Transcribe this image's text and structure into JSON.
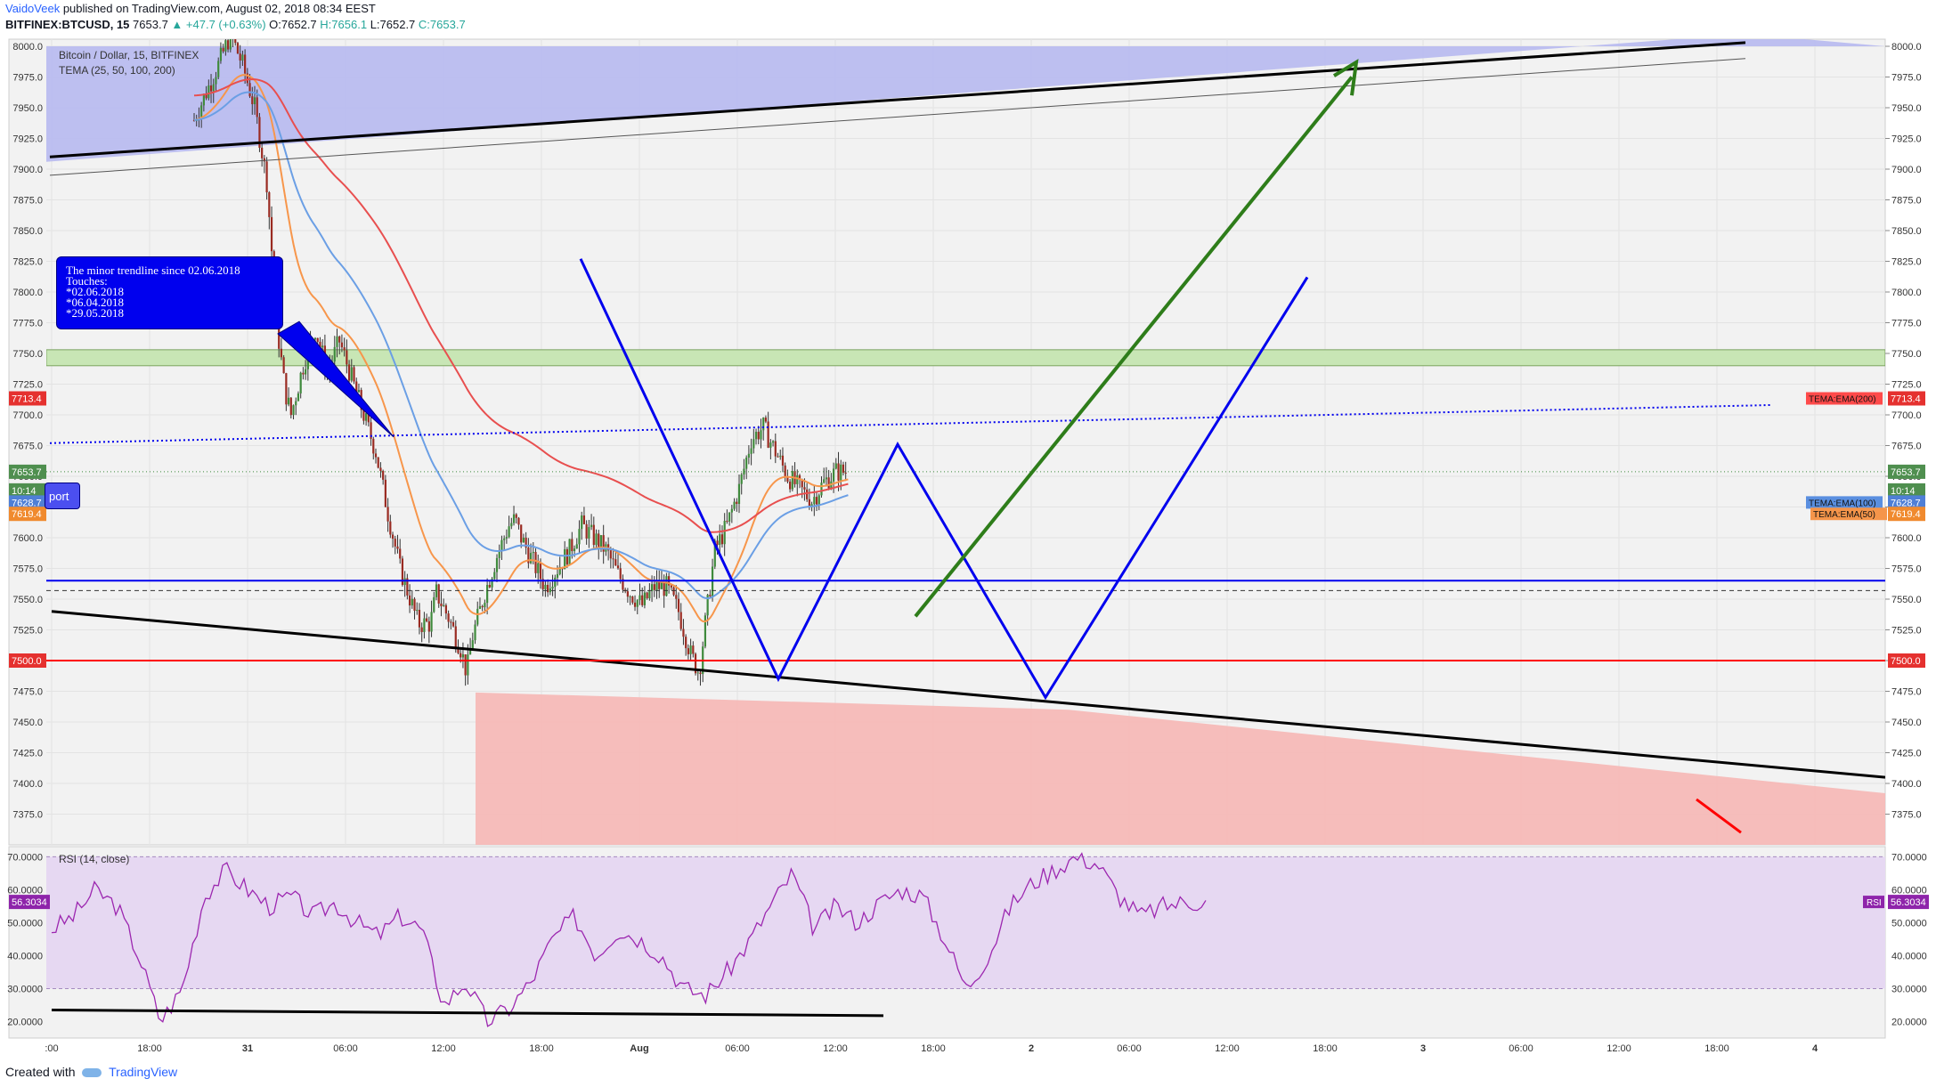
{
  "header": {
    "author": "VaidoVeek",
    "published": "published on TradingView.com, August 02, 2018 08:34 EEST",
    "symbol": "BITFINEX:BTCUSD, 15",
    "last": "7653.7",
    "change_arrow": "▲",
    "change": "+47.7 (+0.63%)",
    "open": "O:7652.7",
    "high": "H:7656.1",
    "low": "L:7652.7",
    "close": "C:7653.7"
  },
  "legend": {
    "title": "Bitcoin / Dollar, 15, BITFINEX",
    "indicator": "TEMA (25, 50, 100, 200)"
  },
  "annotation": {
    "lines": [
      "The minor trendline since 02.06.2018",
      "Touches:",
      "*02.06.2018",
      "*06.04.2018",
      "*29.05.2018"
    ],
    "support_label": "port"
  },
  "rsi": {
    "title": "RSI (14, close)",
    "value": "56.3034",
    "tag": "RSI"
  },
  "footer": {
    "created_with": "Created with",
    "brand": "TradingView"
  },
  "colors": {
    "ema25": "#f7964b",
    "ema50": "#f7964b",
    "ema100": "#6b9fe5",
    "ema200": "#e84f4f",
    "pattern": "#0000ee",
    "target_arrow": "#2e7d1a",
    "support_red": "#ff0000",
    "zone_green": "#c8e6b5",
    "zone_red": "#f5b9b7",
    "wedge_blue": "#b7b9f0",
    "rsi_band": "#e6d8f2",
    "rsi_line": "#9c27b0"
  },
  "chart_data": {
    "type": "candlestick",
    "y_axis": {
      "min": 7350,
      "max": 8000,
      "ticks": [
        "8000.0",
        "7975.0",
        "7950.0",
        "7925.0",
        "7900.0",
        "7875.0",
        "7850.0",
        "7825.0",
        "7800.0",
        "7775.0",
        "7750.0",
        "7725.0",
        "7700.0",
        "7675.0",
        "7650.0",
        "7625.0",
        "7600.0",
        "7575.0",
        "7550.0",
        "7525.0",
        "7500.0",
        "7475.0",
        "7450.0",
        "7425.0",
        "7400.0",
        "7375.0"
      ]
    },
    "x_axis": {
      "ticks": [
        ":00",
        "18:00",
        "31",
        "06:00",
        "12:00",
        "18:00",
        "Aug",
        "06:00",
        "12:00",
        "18:00",
        "2",
        "06:00",
        "12:00",
        "18:00",
        "3",
        "06:00",
        "12:00",
        "18:00",
        "4"
      ]
    },
    "price_tags": {
      "ema200": "7713.4",
      "last": "7653.7",
      "countdown": "10:14",
      "ema100": "7628.7",
      "ema50": "7619.4",
      "support": "7500.0"
    },
    "ema_labels": {
      "ema200": "TEMA:EMA(200)",
      "ema100": "TEMA:EMA(100)",
      "ema50": "TEMA:EMA(50)"
    },
    "levels": {
      "resistance_zone": [
        7740,
        7753
      ],
      "blue_horizontal": 7565,
      "dashed": 7557,
      "red_support": 7500,
      "last_price": 7653.7
    },
    "price_path": [
      [
        0,
        7940
      ],
      [
        2,
        7985
      ],
      [
        3,
        8010
      ],
      [
        4,
        7985
      ],
      [
        5,
        7950
      ],
      [
        6,
        7890
      ],
      [
        6.5,
        7820
      ],
      [
        7,
        7760
      ],
      [
        7.5,
        7720
      ],
      [
        8,
        7700
      ],
      [
        9,
        7740
      ],
      [
        10,
        7770
      ],
      [
        11,
        7735
      ],
      [
        12,
        7760
      ],
      [
        13,
        7730
      ],
      [
        14,
        7700
      ],
      [
        15,
        7670
      ],
      [
        16,
        7620
      ],
      [
        17,
        7575
      ],
      [
        18,
        7545
      ],
      [
        18.5,
        7530
      ],
      [
        19.5,
        7530
      ],
      [
        20,
        7555
      ],
      [
        21,
        7535
      ],
      [
        22,
        7510
      ],
      [
        22.5,
        7490
      ],
      [
        23,
        7520
      ],
      [
        24,
        7555
      ],
      [
        25,
        7585
      ],
      [
        26,
        7610
      ],
      [
        26.5,
        7615
      ],
      [
        27,
        7600
      ],
      [
        28,
        7580
      ],
      [
        29,
        7560
      ],
      [
        30,
        7575
      ],
      [
        31,
        7590
      ],
      [
        32,
        7610
      ],
      [
        33,
        7600
      ],
      [
        34,
        7590
      ],
      [
        35,
        7570
      ],
      [
        36,
        7555
      ],
      [
        37,
        7545
      ],
      [
        38,
        7560
      ],
      [
        39,
        7560
      ],
      [
        40,
        7540
      ],
      [
        41,
        7505
      ],
      [
        41.7,
        7490
      ],
      [
        42.2,
        7530
      ],
      [
        43,
        7590
      ],
      [
        44,
        7610
      ],
      [
        45,
        7640
      ],
      [
        46,
        7680
      ],
      [
        47,
        7690
      ],
      [
        48,
        7670
      ],
      [
        49,
        7650
      ],
      [
        50,
        7640
      ],
      [
        51,
        7630
      ],
      [
        52,
        7645
      ],
      [
        53,
        7653.7
      ]
    ],
    "rsi": {
      "levels": [
        70,
        30
      ],
      "ticks": [
        "70.0000",
        "60.0000",
        "50.0000",
        "40.0000",
        "30.0000",
        "20.0000"
      ],
      "min": 15,
      "max": 72,
      "path": [
        [
          0,
          48
        ],
        [
          1,
          52
        ],
        [
          2,
          60
        ],
        [
          3,
          55
        ],
        [
          4,
          40
        ],
        [
          5,
          20
        ],
        [
          6,
          30
        ],
        [
          7,
          58
        ],
        [
          8,
          66
        ],
        [
          9,
          60
        ],
        [
          10,
          55
        ],
        [
          11,
          58
        ],
        [
          12,
          52
        ],
        [
          13,
          56
        ],
        [
          14,
          50
        ],
        [
          15,
          46
        ],
        [
          16,
          52
        ],
        [
          17,
          48
        ],
        [
          18,
          25
        ],
        [
          19,
          32
        ],
        [
          20,
          20
        ],
        [
          21,
          24
        ],
        [
          22,
          32
        ],
        [
          23,
          45
        ],
        [
          24,
          52
        ],
        [
          25,
          40
        ],
        [
          26,
          48
        ],
        [
          27,
          45
        ],
        [
          28,
          40
        ],
        [
          29,
          30
        ],
        [
          30,
          28
        ],
        [
          31,
          35
        ],
        [
          32,
          44
        ],
        [
          33,
          55
        ],
        [
          34,
          65
        ],
        [
          35,
          48
        ],
        [
          36,
          55
        ],
        [
          37,
          50
        ],
        [
          38,
          56
        ],
        [
          39,
          60
        ],
        [
          40,
          58
        ],
        [
          41,
          45
        ],
        [
          42,
          30
        ],
        [
          43,
          40
        ],
        [
          44,
          55
        ],
        [
          45,
          62
        ],
        [
          46,
          66
        ],
        [
          47,
          70
        ],
        [
          48,
          68
        ],
        [
          49,
          58
        ],
        [
          50,
          52
        ],
        [
          51,
          55
        ],
        [
          52,
          56.3
        ]
      ]
    }
  }
}
